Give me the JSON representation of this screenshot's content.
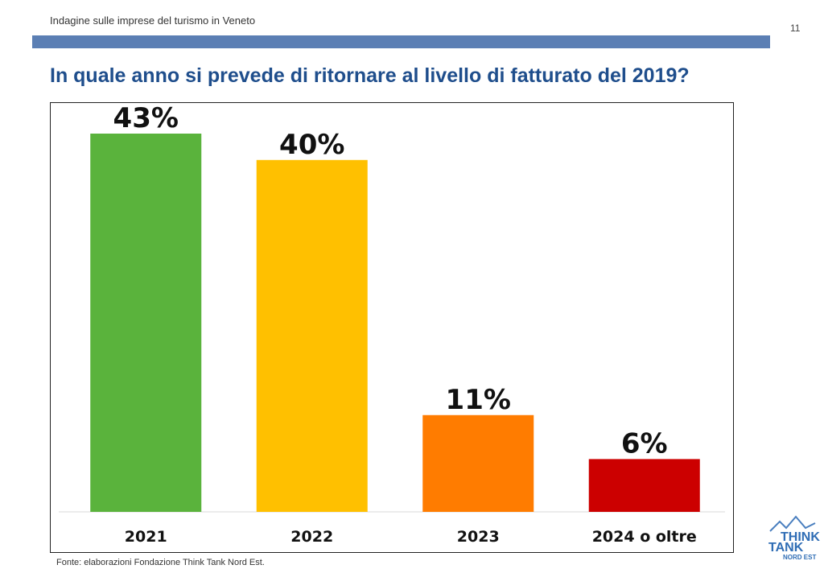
{
  "header": {
    "survey_title": "Indagine sulle imprese del turismo in Veneto",
    "page_number": "11"
  },
  "slide": {
    "title": "In quale anno si prevede di ritornare al livello di fatturato del 2019?",
    "source": "Fonte: elaborazioni Fondazione Think Tank Nord Est."
  },
  "logo": {
    "line1": "THINK",
    "line2": "TANK",
    "line3": "NORD EST"
  },
  "colors": {
    "header_band": "#5b7fb4",
    "title": "#1f4e8c"
  },
  "chart_data": {
    "type": "bar",
    "categories": [
      "2021",
      "2022",
      "2023",
      "2024 o oltre"
    ],
    "values": [
      43,
      40,
      11,
      6
    ],
    "data_labels": [
      "43%",
      "40%",
      "11%",
      "6%"
    ],
    "colors": [
      "#5ab33c",
      "#ffc000",
      "#ff7c00",
      "#cc0000"
    ],
    "ylim": [
      0,
      43
    ],
    "grid": false,
    "legend": "none"
  }
}
